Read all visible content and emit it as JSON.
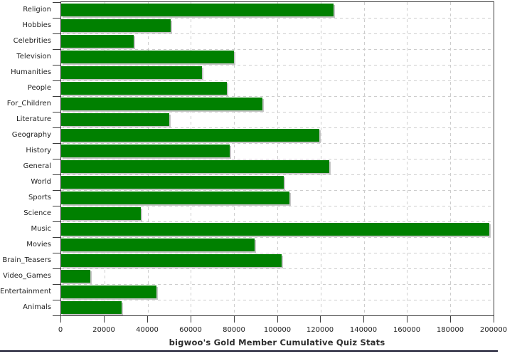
{
  "chart_data": {
    "type": "bar",
    "orientation": "horizontal",
    "title": "bigwoo's Gold Member Cumulative Quiz Stats",
    "xlabel": "",
    "ylabel": "",
    "categories": [
      "Religion",
      "Hobbies",
      "Celebrities",
      "Television",
      "Humanities",
      "People",
      "For_Children",
      "Literature",
      "Geography",
      "History",
      "General",
      "World",
      "Sports",
      "Science",
      "Music",
      "Movies",
      "Brain_Teasers",
      "Video_Games",
      "Entertainment",
      "Animals"
    ],
    "values": [
      126000,
      50500,
      33500,
      80000,
      65000,
      76500,
      93000,
      50000,
      119500,
      78000,
      124000,
      103000,
      105500,
      37000,
      198000,
      89500,
      102000,
      13500,
      44000,
      28000
    ],
    "xlim": [
      0,
      200000
    ],
    "x_ticks": [
      0,
      20000,
      40000,
      60000,
      80000,
      100000,
      120000,
      140000,
      160000,
      180000,
      200000
    ],
    "x_tick_labels": [
      "0",
      "20000",
      "40000",
      "60000",
      "80000",
      "100000",
      "120000",
      "140000",
      "160000",
      "180000",
      "200000"
    ],
    "grid": true,
    "legend": "none",
    "bar_color": "#008000",
    "bar_shadow_color": "#c6c6c6",
    "axis_color": "#3c3c3c",
    "grid_color": "#cdcdcd",
    "background_color": "#ffffff"
  }
}
